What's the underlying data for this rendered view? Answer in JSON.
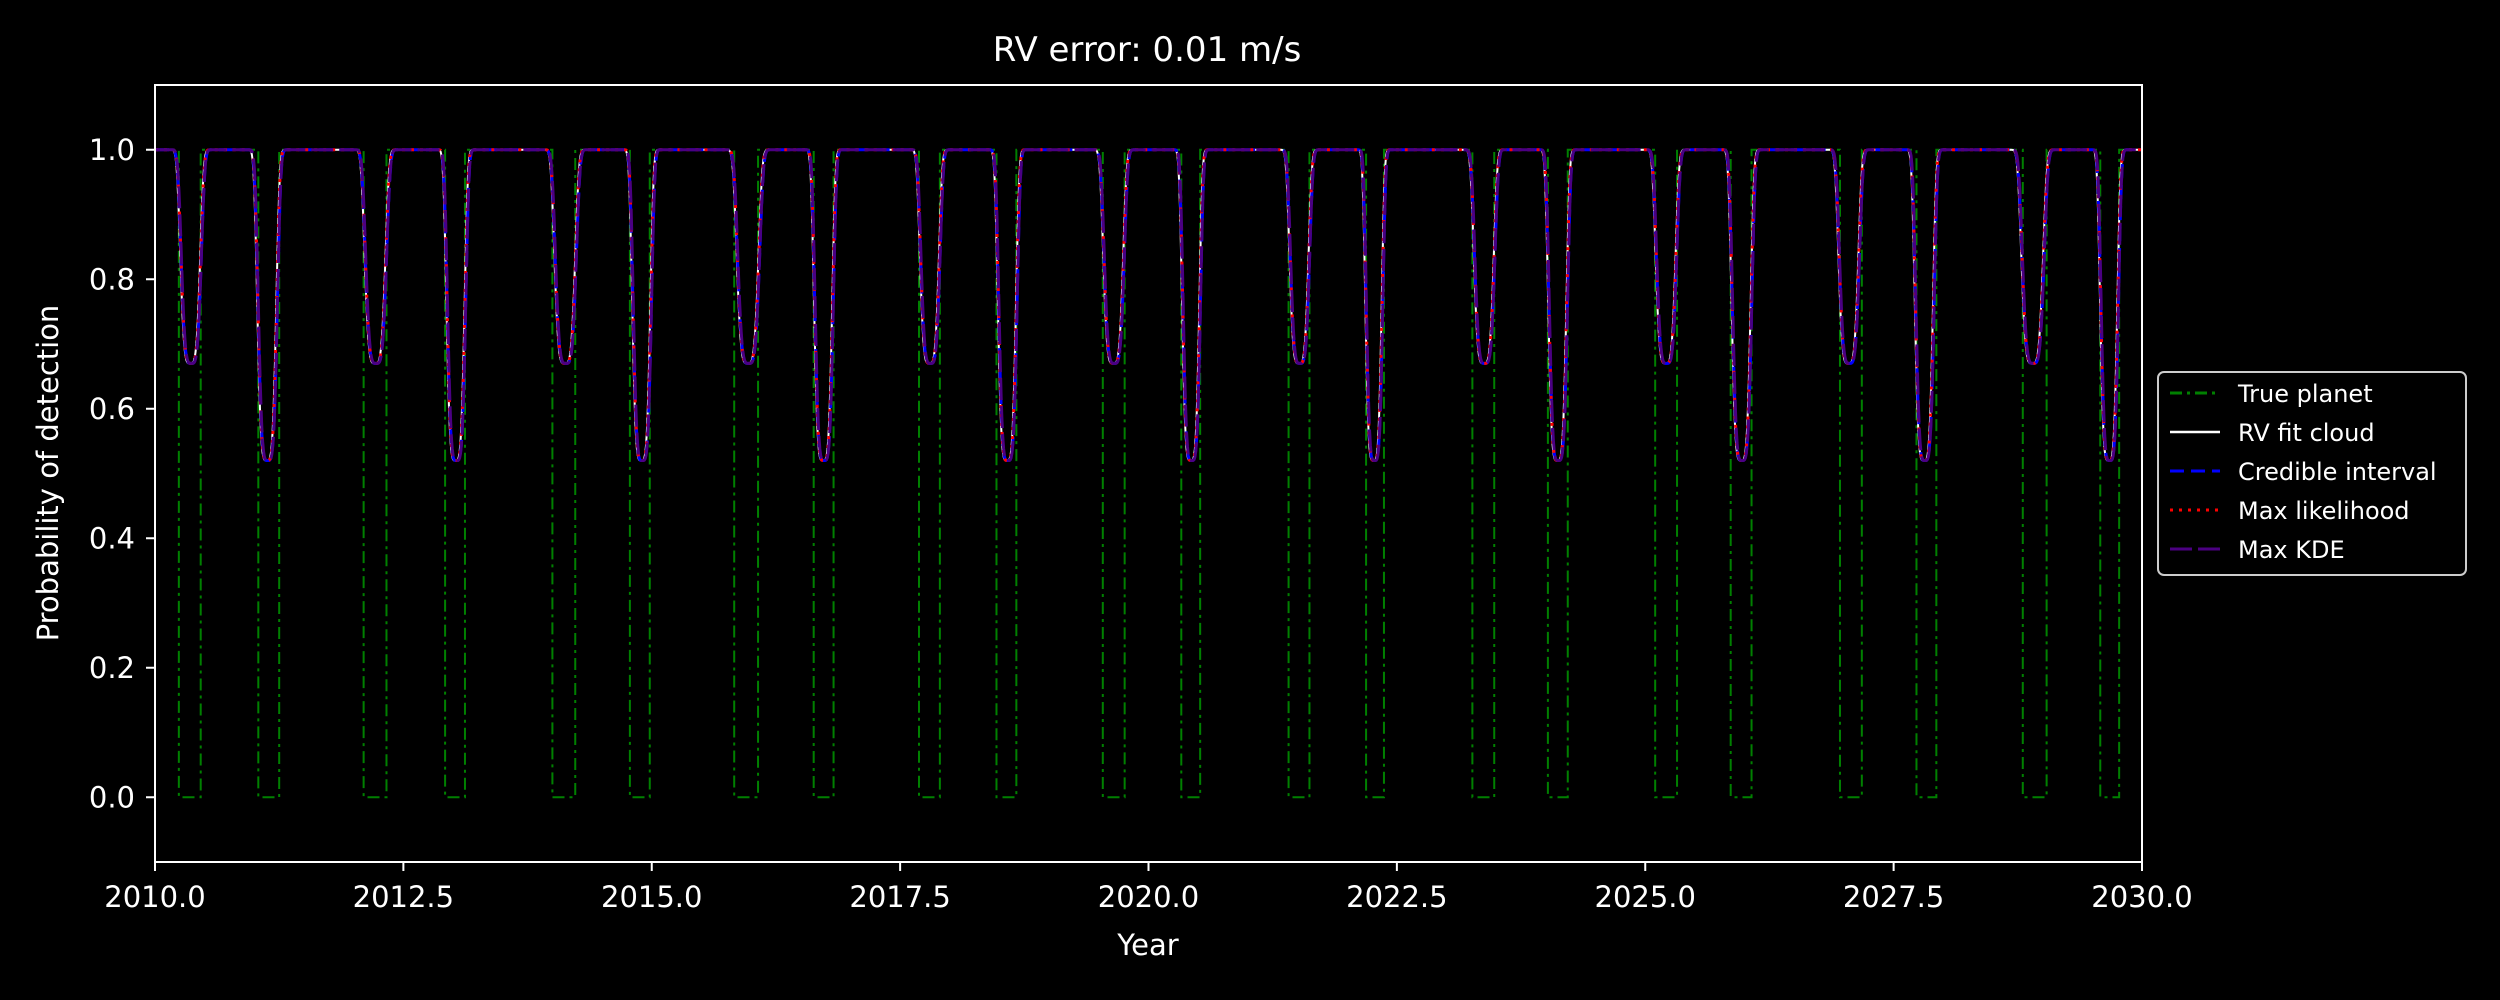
{
  "chart_data": {
    "type": "line",
    "title": "RV error: 0.01 m/s",
    "xlabel": "Year",
    "ylabel": "Probability of detection",
    "xlim": [
      2010.0,
      2030.0
    ],
    "ylim": [
      -0.1,
      1.1
    ],
    "xticks": [
      2010.0,
      2012.5,
      2015.0,
      2017.5,
      2020.0,
      2022.5,
      2025.0,
      2027.5,
      2030.0
    ],
    "xtick_labels": [
      "2010.0",
      "2012.5",
      "2015.0",
      "2017.5",
      "2020.0",
      "2022.5",
      "2025.0",
      "2027.5",
      "2030.0"
    ],
    "yticks": [
      0.0,
      0.2,
      0.4,
      0.6,
      0.8,
      1.0
    ],
    "ytick_labels": [
      "0.0",
      "0.2",
      "0.4",
      "0.6",
      "0.8",
      "1.0"
    ],
    "grid": false,
    "legend_placement": "right-outside",
    "background": "#000000",
    "dips": [
      {
        "center": 2010.36,
        "min": 0.67,
        "true_start": 2010.24,
        "true_end": 2010.46
      },
      {
        "center": 2011.13,
        "min": 0.52,
        "true_start": 2011.04,
        "true_end": 2011.25
      },
      {
        "center": 2012.22,
        "min": 0.67,
        "true_start": 2012.1,
        "true_end": 2012.33
      },
      {
        "center": 2013.03,
        "min": 0.52,
        "true_start": 2012.92,
        "true_end": 2013.12
      },
      {
        "center": 2014.13,
        "min": 0.67,
        "true_start": 2014.0,
        "true_end": 2014.23
      },
      {
        "center": 2014.9,
        "min": 0.52,
        "true_start": 2014.78,
        "true_end": 2014.98
      },
      {
        "center": 2015.97,
        "min": 0.67,
        "true_start": 2015.83,
        "true_end": 2016.07
      },
      {
        "center": 2016.73,
        "min": 0.52,
        "true_start": 2016.63,
        "true_end": 2016.83
      },
      {
        "center": 2017.8,
        "min": 0.67,
        "true_start": 2017.69,
        "true_end": 2017.9
      },
      {
        "center": 2018.58,
        "min": 0.52,
        "true_start": 2018.47,
        "true_end": 2018.67
      },
      {
        "center": 2019.65,
        "min": 0.67,
        "true_start": 2019.54,
        "true_end": 2019.76
      },
      {
        "center": 2020.43,
        "min": 0.52,
        "true_start": 2020.33,
        "true_end": 2020.52
      },
      {
        "center": 2021.52,
        "min": 0.67,
        "true_start": 2021.41,
        "true_end": 2021.62
      },
      {
        "center": 2022.27,
        "min": 0.52,
        "true_start": 2022.19,
        "true_end": 2022.37
      },
      {
        "center": 2023.38,
        "min": 0.67,
        "true_start": 2023.26,
        "true_end": 2023.48
      },
      {
        "center": 2024.12,
        "min": 0.52,
        "true_start": 2024.02,
        "true_end": 2024.22
      },
      {
        "center": 2025.21,
        "min": 0.67,
        "true_start": 2025.1,
        "true_end": 2025.32
      },
      {
        "center": 2025.97,
        "min": 0.52,
        "true_start": 2025.86,
        "true_end": 2026.07
      },
      {
        "center": 2027.05,
        "min": 0.67,
        "true_start": 2026.96,
        "true_end": 2027.18
      },
      {
        "center": 2027.81,
        "min": 0.52,
        "true_start": 2027.73,
        "true_end": 2027.93
      },
      {
        "center": 2028.9,
        "min": 0.67,
        "true_start": 2028.8,
        "true_end": 2029.04
      },
      {
        "center": 2029.67,
        "min": 0.52,
        "true_start": 2029.58,
        "true_end": 2029.77
      }
    ],
    "series": [
      {
        "name": "True planet",
        "color": "#008000",
        "style": "dashdot",
        "value_in_dip": 0.0,
        "value_outside": 1.0
      },
      {
        "name": "RV fit cloud",
        "color": "#ffffff",
        "style": "solid"
      },
      {
        "name": "Credible interval",
        "color": "#0000ff",
        "style": "dashed"
      },
      {
        "name": "Max likelihood",
        "color": "#ff0000",
        "style": "dotted"
      },
      {
        "name": "Max KDE",
        "color": "#4b0082",
        "style": "longdash"
      }
    ]
  }
}
